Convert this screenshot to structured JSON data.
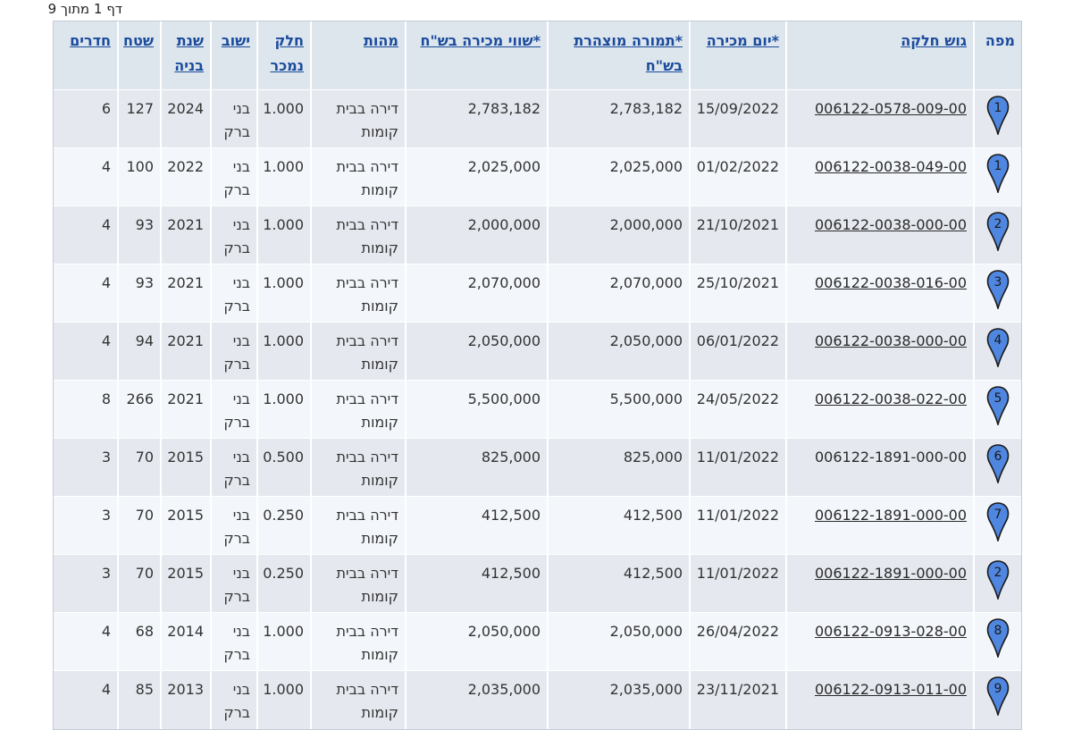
{
  "page_info": "דף 1 מתוך 9",
  "headers": {
    "map": "מפה",
    "gush": "גוש חלקה",
    "sale_date": "*יום מכירה",
    "declared": "*תמורה מוצהרת בש\"ח",
    "sale_value": "*שווי מכירה בש\"ח",
    "type": "מהות",
    "part_sold": "חלק נמכר",
    "city": "ישוב",
    "year_built": "שנת בניה",
    "area": "שטח",
    "rooms": "חדרים"
  },
  "rows": [
    {
      "pin": "1",
      "gush": "006122-0578-009-00",
      "gush_link": true,
      "date": "15/09/2022",
      "declared": "2,783,182",
      "value": "2,783,182",
      "type": "דירה בבית קומות",
      "part": "1.000",
      "city": "בני ברק",
      "year": "2024",
      "area": "127",
      "rooms": "6"
    },
    {
      "pin": "1",
      "gush": "006122-0038-049-00",
      "gush_link": true,
      "date": "01/02/2022",
      "declared": "2,025,000",
      "value": "2,025,000",
      "type": "דירה בבית קומות",
      "part": "1.000",
      "city": "בני ברק",
      "year": "2022",
      "area": "100",
      "rooms": "4"
    },
    {
      "pin": "2",
      "gush": "006122-0038-000-00",
      "gush_link": true,
      "date": "21/10/2021",
      "declared": "2,000,000",
      "value": "2,000,000",
      "type": "דירה בבית קומות",
      "part": "1.000",
      "city": "בני ברק",
      "year": "2021",
      "area": "93",
      "rooms": "4"
    },
    {
      "pin": "3",
      "gush": "006122-0038-016-00",
      "gush_link": true,
      "date": "25/10/2021",
      "declared": "2,070,000",
      "value": "2,070,000",
      "type": "דירה בבית קומות",
      "part": "1.000",
      "city": "בני ברק",
      "year": "2021",
      "area": "93",
      "rooms": "4"
    },
    {
      "pin": "4",
      "gush": "006122-0038-000-00",
      "gush_link": true,
      "date": "06/01/2022",
      "declared": "2,050,000",
      "value": "2,050,000",
      "type": "דירה בבית קומות",
      "part": "1.000",
      "city": "בני ברק",
      "year": "2021",
      "area": "94",
      "rooms": "4"
    },
    {
      "pin": "5",
      "gush": "006122-0038-022-00",
      "gush_link": true,
      "date": "24/05/2022",
      "declared": "5,500,000",
      "value": "5,500,000",
      "type": "דירה בבית קומות",
      "part": "1.000",
      "city": "בני ברק",
      "year": "2021",
      "area": "266",
      "rooms": "8"
    },
    {
      "pin": "6",
      "gush": "006122-1891-000-00",
      "gush_link": false,
      "date": "11/01/2022",
      "declared": "825,000",
      "value": "825,000",
      "type": "דירה בבית קומות",
      "part": "0.500",
      "city": "בני ברק",
      "year": "2015",
      "area": "70",
      "rooms": "3"
    },
    {
      "pin": "7",
      "gush": "006122-1891-000-00",
      "gush_link": true,
      "date": "11/01/2022",
      "declared": "412,500",
      "value": "412,500",
      "type": "דירה בבית קומות",
      "part": "0.250",
      "city": "בני ברק",
      "year": "2015",
      "area": "70",
      "rooms": "3"
    },
    {
      "pin": "2",
      "gush": "006122-1891-000-00",
      "gush_link": true,
      "date": "11/01/2022",
      "declared": "412,500",
      "value": "412,500",
      "type": "דירה בבית קומות",
      "part": "0.250",
      "city": "בני ברק",
      "year": "2015",
      "area": "70",
      "rooms": "3"
    },
    {
      "pin": "8",
      "gush": "006122-0913-028-00",
      "gush_link": true,
      "date": "26/04/2022",
      "declared": "2,050,000",
      "value": "2,050,000",
      "type": "דירה בבית קומות",
      "part": "1.000",
      "city": "בני ברק",
      "year": "2014",
      "area": "68",
      "rooms": "4"
    },
    {
      "pin": "9",
      "gush": "006122-0913-011-00",
      "gush_link": true,
      "date": "23/11/2021",
      "declared": "2,035,000",
      "value": "2,035,000",
      "type": "דירה בבית קומות",
      "part": "1.000",
      "city": "בני ברק",
      "year": "2013",
      "area": "85",
      "rooms": "4"
    }
  ],
  "colors": {
    "pin_fill": "#4f86e0",
    "pin_stroke": "#1a1a1a",
    "header_bg": "#dde5ed",
    "link": "#1a4b9c"
  }
}
